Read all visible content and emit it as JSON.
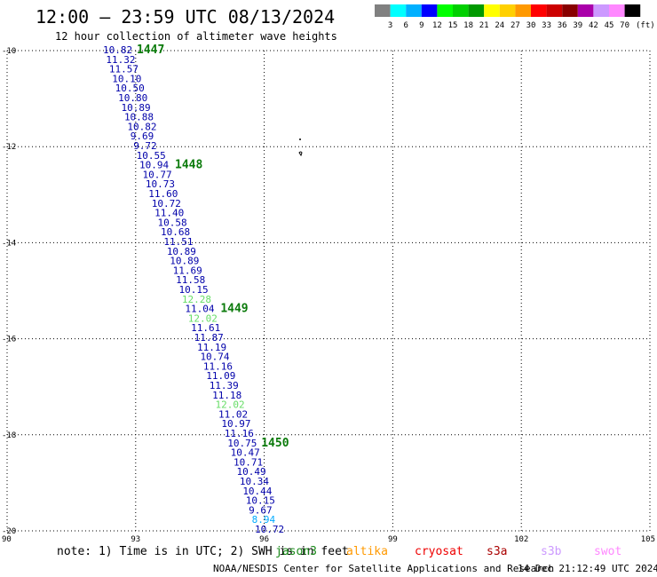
{
  "title": "12:00 – 23:59 UTC 08/13/2024",
  "subtitle": "12 hour collection of altimeter wave heights",
  "legend": {
    "swatches": [
      {
        "color": "#808080"
      },
      {
        "color": "#00ffff"
      },
      {
        "color": "#00b0ff"
      },
      {
        "color": "#0000ff"
      },
      {
        "color": "#00ff00"
      },
      {
        "color": "#00d000"
      },
      {
        "color": "#009900"
      },
      {
        "color": "#ffff00"
      },
      {
        "color": "#ffd000"
      },
      {
        "color": "#ff9900"
      },
      {
        "color": "#ff0000"
      },
      {
        "color": "#cc0000"
      },
      {
        "color": "#880000"
      },
      {
        "color": "#aa00aa"
      },
      {
        "color": "#cc99ff"
      },
      {
        "color": "#ff88ff"
      },
      {
        "color": "#000000"
      }
    ],
    "labels": [
      "3",
      "6",
      "9",
      "12",
      "15",
      "18",
      "21",
      "24",
      "27",
      "30",
      "33",
      "36",
      "39",
      "42",
      "45",
      "70",
      "(ft)"
    ]
  },
  "axes": {
    "lon_ticks": [
      "90",
      "93",
      "96",
      "99",
      "102",
      "105"
    ],
    "lat_ticks": [
      "-10",
      "-12",
      "-14",
      "-16",
      "-18",
      "-20"
    ]
  },
  "colors": {
    "dark_blue": "#0000aa",
    "light_green": "#66dd66",
    "cyan": "#00aaff",
    "pass_green": "#0a7a0a"
  },
  "observations": [
    {
      "v": "10.82",
      "c": "dark_blue"
    },
    {
      "v": "11.32",
      "c": "dark_blue"
    },
    {
      "v": "11.57",
      "c": "dark_blue"
    },
    {
      "v": "10.10",
      "c": "dark_blue"
    },
    {
      "v": "10.50",
      "c": "dark_blue"
    },
    {
      "v": "10.80",
      "c": "dark_blue"
    },
    {
      "v": "10.89",
      "c": "dark_blue"
    },
    {
      "v": "10.88",
      "c": "dark_blue"
    },
    {
      "v": "10.82",
      "c": "dark_blue"
    },
    {
      "v": "9.69",
      "c": "dark_blue"
    },
    {
      "v": "9.72",
      "c": "dark_blue"
    },
    {
      "v": "10.55",
      "c": "dark_blue"
    },
    {
      "v": "10.94",
      "c": "dark_blue"
    },
    {
      "v": "10.77",
      "c": "dark_blue"
    },
    {
      "v": "10.73",
      "c": "dark_blue"
    },
    {
      "v": "11.60",
      "c": "dark_blue"
    },
    {
      "v": "10.72",
      "c": "dark_blue"
    },
    {
      "v": "11.40",
      "c": "dark_blue"
    },
    {
      "v": "10.58",
      "c": "dark_blue"
    },
    {
      "v": "10.68",
      "c": "dark_blue"
    },
    {
      "v": "11.51",
      "c": "dark_blue"
    },
    {
      "v": "10.89",
      "c": "dark_blue"
    },
    {
      "v": "10.89",
      "c": "dark_blue"
    },
    {
      "v": "11.69",
      "c": "dark_blue"
    },
    {
      "v": "11.58",
      "c": "dark_blue"
    },
    {
      "v": "10.15",
      "c": "dark_blue"
    },
    {
      "v": "12.28",
      "c": "light_green"
    },
    {
      "v": "11.04",
      "c": "dark_blue"
    },
    {
      "v": "12.02",
      "c": "light_green"
    },
    {
      "v": "11.61",
      "c": "dark_blue"
    },
    {
      "v": "11.87",
      "c": "dark_blue"
    },
    {
      "v": "11.19",
      "c": "dark_blue"
    },
    {
      "v": "10.74",
      "c": "dark_blue"
    },
    {
      "v": "11.16",
      "c": "dark_blue"
    },
    {
      "v": "11.09",
      "c": "dark_blue"
    },
    {
      "v": "11.39",
      "c": "dark_blue"
    },
    {
      "v": "11.18",
      "c": "dark_blue"
    },
    {
      "v": "12.02",
      "c": "light_green"
    },
    {
      "v": "11.02",
      "c": "dark_blue"
    },
    {
      "v": "10.97",
      "c": "dark_blue"
    },
    {
      "v": "11.16",
      "c": "dark_blue"
    },
    {
      "v": "10.75",
      "c": "dark_blue"
    },
    {
      "v": "10.47",
      "c": "dark_blue"
    },
    {
      "v": "10.71",
      "c": "dark_blue"
    },
    {
      "v": "10.49",
      "c": "dark_blue"
    },
    {
      "v": "10.34",
      "c": "dark_blue"
    },
    {
      "v": "10.44",
      "c": "dark_blue"
    },
    {
      "v": "10.15",
      "c": "dark_blue"
    },
    {
      "v": "9.67",
      "c": "dark_blue"
    },
    {
      "v": "8.94",
      "c": "cyan"
    },
    {
      "v": "10.72",
      "c": "dark_blue"
    }
  ],
  "pass_labels": [
    "1447",
    "1448",
    "1449",
    "1450"
  ],
  "note": "note:  1) Time is in UTC; 2) SWH is in feet",
  "satellites": [
    {
      "name": "jason3",
      "color": "#1a8a1a"
    },
    {
      "name": "altika",
      "color": "#ff9900"
    },
    {
      "name": "cryosat",
      "color": "#ee0000"
    },
    {
      "name": "s3a",
      "color": "#aa0000"
    },
    {
      "name": "s3b",
      "color": "#cc99ff"
    },
    {
      "name": "swot",
      "color": "#ff88ff"
    }
  ],
  "credit": "NOAA/NESDIS Center for Satellite Applications and Research",
  "timestamp": "14 Dec 21:12:49 UTC 2024"
}
